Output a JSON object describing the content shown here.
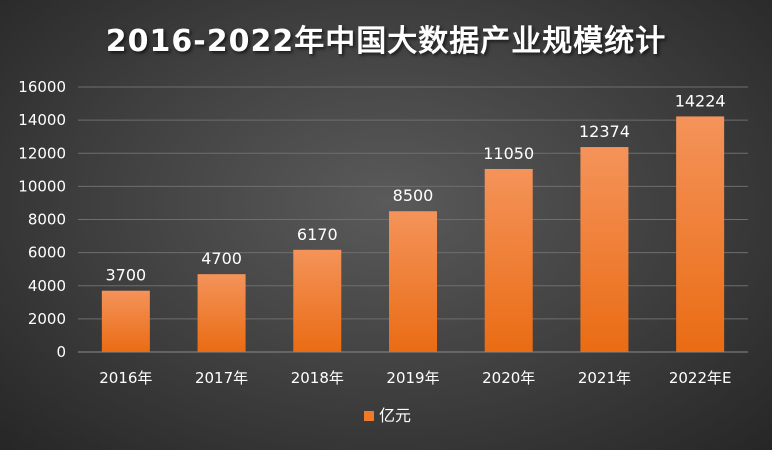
{
  "chart_data": {
    "type": "bar",
    "title": "2016-2022年中国大数据产业规模统计",
    "categories": [
      "2016年",
      "2017年",
      "2018年",
      "2019年",
      "2020年",
      "2021年",
      "2022年E"
    ],
    "series": [
      {
        "name": "亿元",
        "values": [
          3700,
          4700,
          6170,
          8500,
          11050,
          12374,
          14224
        ],
        "color": "#f07a28"
      }
    ],
    "ylim": [
      0,
      16000
    ],
    "yticks": [
      0,
      2000,
      4000,
      6000,
      8000,
      10000,
      12000,
      14000,
      16000
    ],
    "grid": true,
    "legend_position": "bottom",
    "xlabel": "",
    "ylabel": ""
  }
}
